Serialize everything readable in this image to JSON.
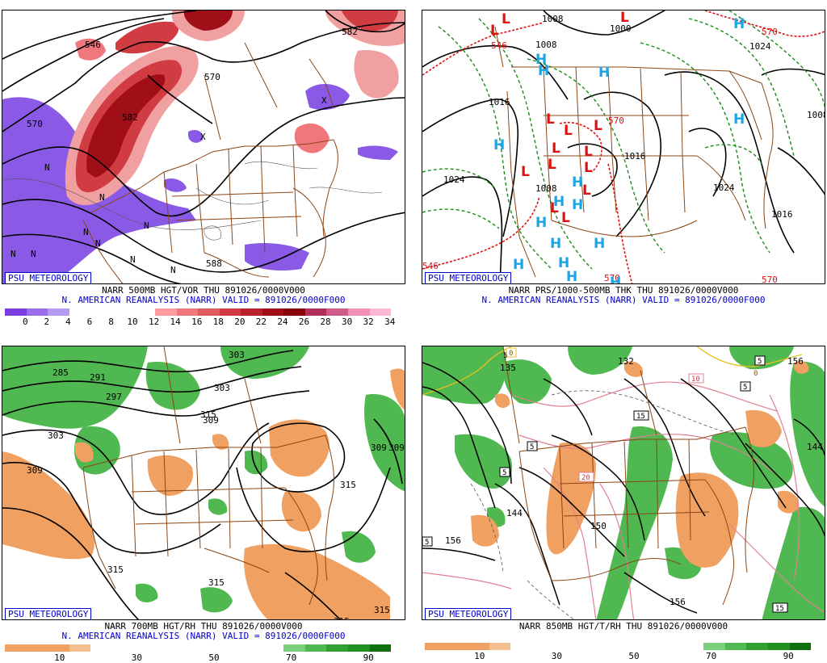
{
  "credit": "PSU METEOROLOGY",
  "panels": [
    {
      "caption_line1": "NARR 500MB HGT/VOR THU 891026/0000V000",
      "caption_line2": "N. AMERICAN REANALYSIS (NARR) VALID = 891026/0000F000",
      "colorbar": {
        "colors": [
          "#7a3de0",
          "#9a6ee8",
          "#b49af0",
          "#ffffff",
          "#ffffff",
          "#ffffff",
          "#ffffff",
          "#ff9aa0",
          "#f0787c",
          "#e05a5e",
          "#d03c42",
          "#b8202a",
          "#a00e18",
          "#880008",
          "#b0305a",
          "#d05a8a",
          "#f090b8",
          "#ffb8d4"
        ],
        "ticks": [
          "0",
          "2",
          "4",
          "6",
          "8",
          "10",
          "12",
          "14",
          "16",
          "18",
          "20",
          "22",
          "24",
          "26",
          "28",
          "30",
          "32",
          "34"
        ]
      },
      "contour_labels": [
        "546",
        "570",
        "582",
        "570",
        "588",
        "582",
        "546",
        "546"
      ],
      "center_labels": [
        "N",
        "N",
        "N",
        "N",
        "N",
        "N",
        "N",
        "N",
        "N",
        "X",
        "X"
      ]
    },
    {
      "caption_line1": "NARR PRS/1000-500MB THK THU 891026/0000V000",
      "caption_line2": "N. AMERICAN REANALYSIS (NARR) VALID = 891026/0000F000",
      "contour_labels": [
        "1008",
        "1000",
        "1008",
        "1016",
        "1024",
        "1008",
        "1016",
        "1024",
        "1016",
        "1024",
        "1008",
        "570",
        "546",
        "570",
        "546",
        "570",
        "570"
      ],
      "highs": [
        "H",
        "H",
        "H",
        "H",
        "H",
        "H",
        "H",
        "H",
        "H",
        "H",
        "H",
        "H",
        "H",
        "H",
        "H",
        "H"
      ],
      "lows": [
        "L",
        "L",
        "L",
        "L",
        "L",
        "L",
        "L",
        "L",
        "L",
        "L",
        "L",
        "L",
        "L",
        "L"
      ]
    },
    {
      "caption_line1": "NARR 700MB HGT/RH THU 891026/0000V000",
      "caption_line2": "N. AMERICAN REANALYSIS (NARR) VALID = 891026/0000F000",
      "colorbar": {
        "colors": [
          "#f0a060",
          "#f0a060",
          "#f0a060",
          "#f5c090",
          "#ffffff",
          "#ffffff",
          "#ffffff",
          "#ffffff",
          "#ffffff",
          "#ffffff",
          "#ffffff",
          "#ffffff",
          "#ffffff",
          "#7ad07a",
          "#50b850",
          "#30a030",
          "#209020",
          "#107010"
        ],
        "ticks": [
          "10",
          "30",
          "50",
          "70",
          "90"
        ]
      },
      "contour_labels": [
        "285",
        "291",
        "297",
        "303",
        "309",
        "303",
        "309",
        "309",
        "315",
        "315",
        "315",
        "309",
        "303",
        "315",
        "315",
        "315"
      ]
    },
    {
      "caption_line1": "NARR 850MB HGT/T/RH THU 891026/0000V000",
      "contour_labels": [
        "135",
        "132",
        "144",
        "150",
        "156",
        "156",
        "144",
        "156"
      ],
      "temperature_labels": [
        "0",
        "5",
        "5",
        "5",
        "5",
        "5",
        "10",
        "15",
        "20",
        "15",
        "0",
        "5"
      ],
      "colorbar": {
        "colors": [
          "#f0a060",
          "#f0a060",
          "#f0a060",
          "#f5c090",
          "#ffffff",
          "#ffffff",
          "#ffffff",
          "#ffffff",
          "#ffffff",
          "#ffffff",
          "#ffffff",
          "#ffffff",
          "#ffffff",
          "#7ad07a",
          "#50b850",
          "#30a030",
          "#209020",
          "#107010"
        ],
        "ticks": [
          "10",
          "30",
          "50",
          "70",
          "90"
        ]
      }
    }
  ]
}
